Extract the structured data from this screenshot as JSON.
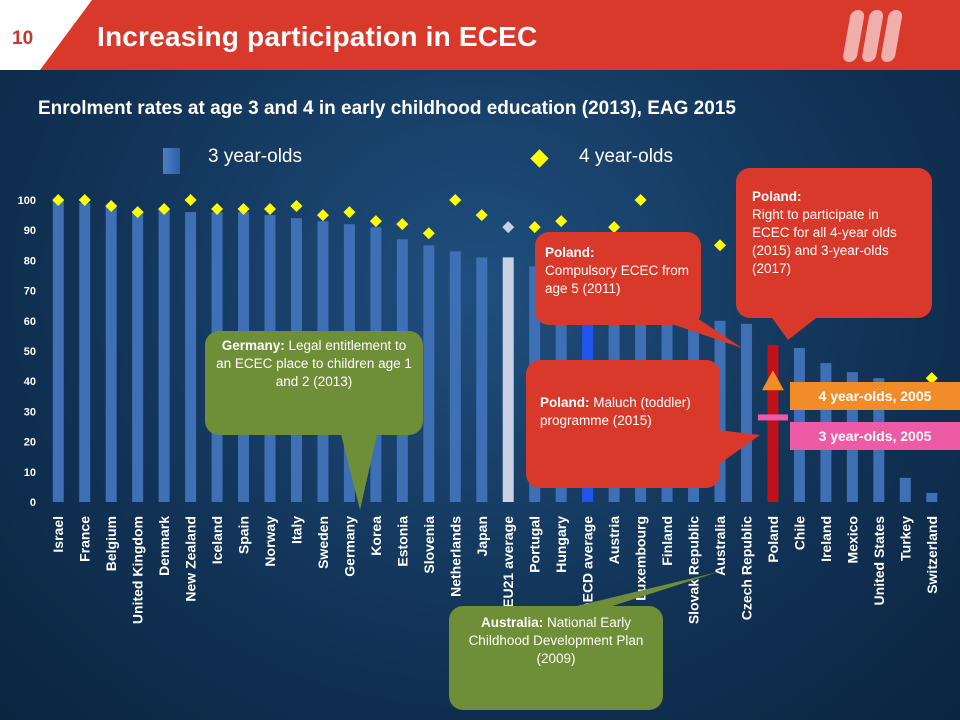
{
  "slide": {
    "number": "10",
    "title": "Increasing participation in ECEC"
  },
  "subtitle": "Enrolment rates at age 3 and 4 in early childhood education (2013), EAG 2015",
  "colors": {
    "bar": "#3f6fb5",
    "bar_highlight": "#2255ee",
    "bar_average": "#c8d2e4",
    "bar_poland": "#c0101a",
    "diamond": "#ffff00",
    "diamond_average": "#c8d2e4",
    "red": "#d9392b",
    "green": "#6e8f38",
    "orange": "#f28c28",
    "pink": "#ee5aa5"
  },
  "chart_data": {
    "type": "bar",
    "legend": [
      "3 year-olds",
      "4 year-olds"
    ],
    "ylim": [
      0,
      100
    ],
    "yticks": [
      "0",
      "10",
      "20",
      "30",
      "40",
      "50",
      "60",
      "70",
      "80",
      "90",
      "100"
    ],
    "categories": [
      "Israel",
      "France",
      "Belgium",
      "United Kingdom",
      "Denmark",
      "New Zealand",
      "Iceland",
      "Spain",
      "Norway",
      "Italy",
      "Sweden",
      "Germany",
      "Korea",
      "Estonia",
      "Slovenia",
      "Netherlands",
      "Japan",
      "EU21 average",
      "Portugal",
      "Hungary",
      "OECD average",
      "Austria",
      "Luxembourg",
      "Finland",
      "Slovak Republic",
      "Australia",
      "Czech Republic",
      "Poland",
      "Chile",
      "Ireland",
      "Mexico",
      "United States",
      "Turkey",
      "Switzerland"
    ],
    "series": [
      {
        "name": "3 year-olds",
        "values": [
          100,
          99,
          98,
          96,
          97,
          96,
          96,
          96,
          95,
          94,
          93,
          92,
          91,
          87,
          85,
          83,
          81,
          81,
          78,
          74,
          70,
          68,
          64,
          62,
          61,
          60,
          59,
          52,
          51,
          46,
          43,
          41,
          8,
          3
        ]
      },
      {
        "name": "4 year-olds",
        "values": [
          100,
          100,
          98,
          96,
          97,
          100,
          97,
          97,
          97,
          98,
          95,
          96,
          93,
          92,
          89,
          100,
          95,
          91,
          91,
          93,
          87,
          91,
          100,
          79,
          78,
          85,
          88,
          84,
          null,
          null,
          null,
          null,
          null,
          41
        ]
      }
    ],
    "poland_2005": {
      "4 year-olds": 39,
      "3 year-olds": 28
    }
  },
  "callouts": {
    "germany_bold": "Germany:",
    "germany_text": " Legal entitlement to an ECEC place to children age 1 and 2 (2013)",
    "australia_bold": "Australia:",
    "australia_text": " National Early Childhood Development Plan (2009)",
    "poland1_bold": "Poland:",
    "poland1_text": "Compulsory ECEC from age 5 (2011)",
    "poland2_bold": "Poland:",
    "poland2_text": "Right to participate in ECEC for all 4-year olds (2015) and 3-year-olds (2017)",
    "poland3_bold": "Poland:",
    "poland3_text": " Maluch (toddler) programme (2015)"
  },
  "tags": {
    "four_2005": "4 year-olds, 2005",
    "three_2005": "3 year-olds, 2005"
  }
}
